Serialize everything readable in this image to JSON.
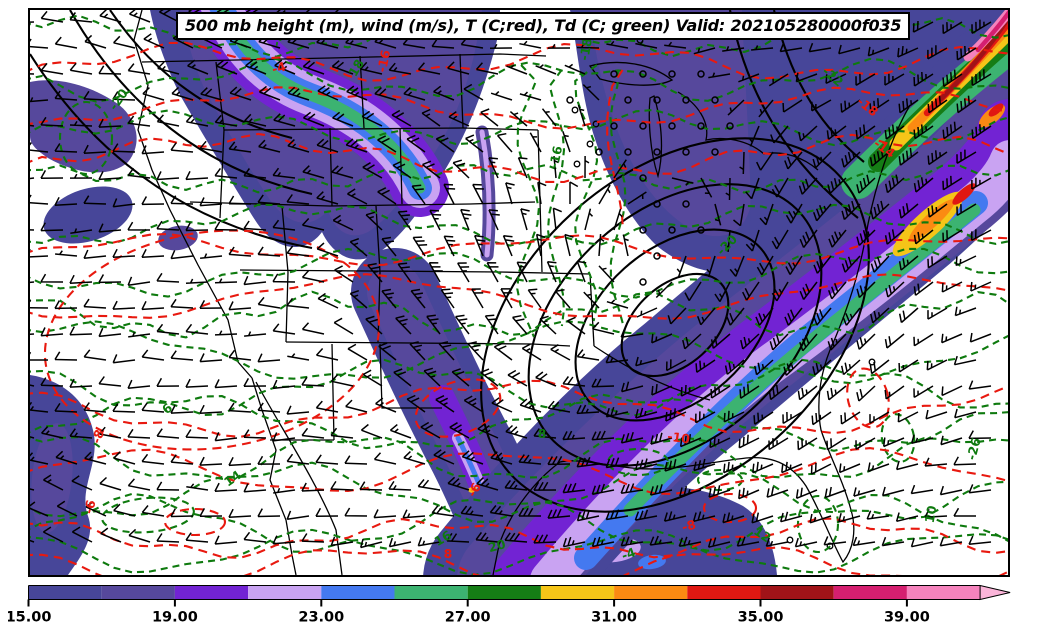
{
  "title": {
    "text": "500 mb height (m), wind (m/s), T (C;red), Td (C; green) Valid: 202105280000f035"
  },
  "colorbar": {
    "unit": "m/s",
    "ticks": [
      "15.00",
      "19.00",
      "23.00",
      "27.00",
      "31.00",
      "35.00",
      "39.00"
    ],
    "tick_values": [
      15,
      19,
      23,
      27,
      31,
      35,
      39
    ],
    "boundary_values": [
      15,
      17,
      19,
      21,
      23,
      25,
      27,
      29,
      31,
      33,
      35,
      37,
      39,
      41
    ],
    "segment_colors": [
      "#474699",
      "#56489c",
      "#7223d3",
      "#c9a3f2",
      "#4479f0",
      "#3cb371",
      "#157d15",
      "#f5c518",
      "#fb8a12",
      "#e01812",
      "#a01318",
      "#d51f70",
      "#f583bd"
    ],
    "arrow_color": "#fbb5d9"
  },
  "map": {
    "background": "#ffffff",
    "border_color": "#000000",
    "wind_barb_color": "#000000",
    "height_contour_color": "#000000",
    "temperature_contour_color": "#e8190f",
    "dewpoint_contour_color": "#0e7a0e",
    "red_labels": [
      "-16",
      "-18",
      "-14",
      "-10",
      "-8",
      "-6",
      "-8",
      "-6",
      "8",
      "-4"
    ],
    "green_labels": [
      "-22",
      "-26",
      "-20",
      "-28",
      "-16",
      "-18",
      "8",
      "6",
      "12",
      "10",
      "16",
      "20",
      "-4",
      "14",
      "18",
      "-20"
    ]
  }
}
